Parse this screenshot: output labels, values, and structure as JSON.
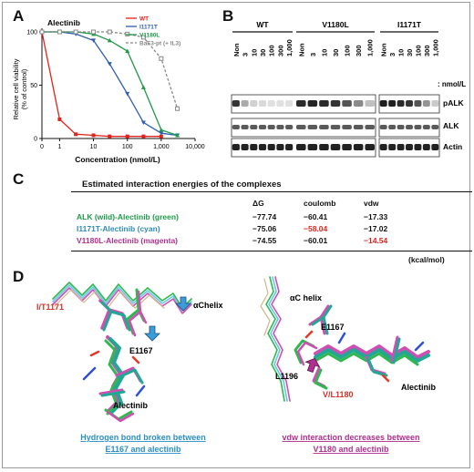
{
  "panels": {
    "A": "A",
    "B": "B",
    "C": "C",
    "D": "D"
  },
  "panel_a": {
    "title": "Alectinib",
    "ylabel_1": "Relative cell viability",
    "ylabel_2": "(% of control)",
    "xlabel": "Concentration (nmol/L)",
    "colors": {
      "WT": "#e2231a",
      "I1171T": "#2e5fb0",
      "V1180L": "#1f9a4a",
      "BaF3": "#888888"
    }
  },
  "chart_data": {
    "type": "line",
    "title": "Alectinib",
    "xlabel": "Concentration (nmol/L)",
    "ylabel": "Relative cell viability (% of control)",
    "x_scale": "log",
    "xlim": [
      0,
      10000
    ],
    "ylim": [
      0,
      100
    ],
    "x_tick_labels": [
      "0",
      "1",
      "10",
      "100",
      "1,000",
      "10,000"
    ],
    "y_tick_labels": [
      "0",
      "50",
      "100"
    ],
    "legend": "top-right",
    "series": [
      {
        "name": "WT",
        "color": "#e2231a",
        "marker": "square",
        "x": [
          0.3,
          1,
          3,
          10,
          30,
          100,
          300,
          1000
        ],
        "y": [
          100,
          18,
          4,
          3,
          2,
          2,
          2,
          2
        ]
      },
      {
        "name": "I1171T",
        "color": "#2e5fb0",
        "marker": "triangle-down",
        "x": [
          0.3,
          1,
          3,
          10,
          30,
          100,
          300,
          1000,
          3000
        ],
        "y": [
          100,
          100,
          98,
          92,
          70,
          42,
          15,
          5,
          3
        ]
      },
      {
        "name": "V1180L",
        "color": "#1f9a4a",
        "marker": "triangle",
        "x": [
          0.3,
          1,
          3,
          10,
          30,
          100,
          300,
          1000,
          3000
        ],
        "y": [
          100,
          100,
          100,
          98,
          92,
          82,
          48,
          8,
          3
        ]
      },
      {
        "name": "BaF3-pt (+ IL3)",
        "color": "#888888",
        "marker": "open-square",
        "x": [
          0.3,
          1,
          3,
          10,
          30,
          100,
          300,
          1000,
          3000
        ],
        "y": [
          100,
          100,
          100,
          100,
          100,
          98,
          95,
          75,
          28
        ]
      }
    ]
  },
  "panel_b": {
    "groups": [
      {
        "name": "WT",
        "lanes": [
          "Non",
          "3",
          "10",
          "30",
          "100",
          "300",
          "1,000"
        ]
      },
      {
        "name": "V1180L",
        "lanes": [
          "Non",
          "3",
          "10",
          "30",
          "100",
          "300",
          "1,000"
        ]
      },
      {
        "name": "I1171T",
        "lanes": [
          "Non",
          "3",
          "10",
          "30",
          "100",
          "300",
          "1,000"
        ]
      }
    ],
    "unit": ": nmol/L",
    "rows": [
      "pALK",
      "ALK",
      "Actin"
    ],
    "pALK_intensity": {
      "WT": [
        0.85,
        0.3,
        0.12,
        0.08,
        0.05,
        0.05,
        0.05
      ],
      "V1180L": [
        0.9,
        0.92,
        0.9,
        0.85,
        0.7,
        0.45,
        0.2
      ],
      "I1171T": [
        0.95,
        0.95,
        0.9,
        0.85,
        0.7,
        0.4,
        0.15
      ]
    }
  },
  "panel_c": {
    "title": "Estimated interaction energies of the complexes",
    "headers": [
      "ΔG",
      "coulomb",
      "vdw"
    ],
    "rows": [
      {
        "label": "ALK (wild)-Alectinib (green)",
        "color": "#1f9a4a",
        "values": [
          "−77.74",
          "−60.41",
          "−17.33"
        ]
      },
      {
        "label": "I1171T-Alectinib (cyan)",
        "color": "#2e8bb8",
        "values": [
          "−75.06",
          "−58.04",
          "−17.02"
        ]
      },
      {
        "label": "V1180L-Alectinib (magenta)",
        "color": "#b0308f",
        "values": [
          "−74.55",
          "−60.01",
          "−14.54"
        ]
      }
    ],
    "unit": "(kcal/mol)"
  },
  "panel_d": {
    "left": {
      "I_T1171": "I/T1171",
      "E1167": "E1167",
      "achelix": "αChelix",
      "alectinib": "Alectinib",
      "caption_1": "Hydrogen bond broken between",
      "caption_2": "E1167 and alectinib"
    },
    "right": {
      "achelix": "αC helix",
      "E1167": "E1167",
      "L1196": "L1196",
      "V_L1180": "V/L1180",
      "alectinib": "Alectinib",
      "caption_1": "vdw interaction decreases between",
      "caption_2": "V1180 and alectinib"
    }
  }
}
